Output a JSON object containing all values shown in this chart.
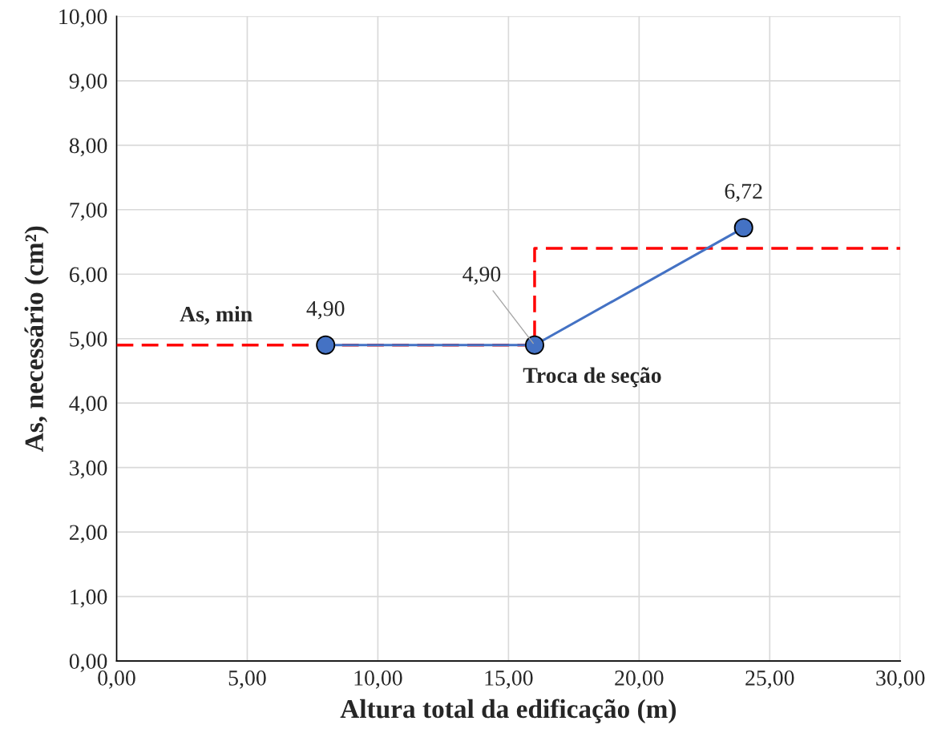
{
  "chart_data": {
    "type": "line",
    "xlabel": "Altura total da edificação (m)",
    "ylabel": "As, necessário (cm²)",
    "series": [
      {
        "type": "step",
        "color": "#ff0000",
        "line_style": "dashed",
        "marker": "none",
        "x": [
          0,
          16,
          30
        ],
        "values": [
          4.9,
          6.4,
          6.4
        ]
      },
      {
        "color": "#4472c4",
        "line_style": "solid",
        "marker": "circle",
        "x": [
          8,
          16,
          24
        ],
        "values": [
          4.9,
          4.9,
          6.72
        ],
        "value_labels": [
          "4,90",
          "4,90",
          "6,72"
        ]
      }
    ],
    "annotations": [
      "As, min",
      "Troca de seção"
    ],
    "xlim": [
      0,
      30
    ],
    "xticks": [
      {
        "value": 0,
        "label": "0,00"
      },
      {
        "value": 5,
        "label": "5,00"
      },
      {
        "value": 10,
        "label": "10,00"
      },
      {
        "value": 15,
        "label": "15,00"
      },
      {
        "value": 20,
        "label": "20,00"
      },
      {
        "value": 25,
        "label": "25,00"
      },
      {
        "value": 30,
        "label": "30,00"
      }
    ],
    "ylim": [
      0,
      10
    ],
    "yticks": [
      {
        "value": 0,
        "label": "0,00"
      },
      {
        "value": 1,
        "label": "1,00"
      },
      {
        "value": 2,
        "label": "2,00"
      },
      {
        "value": 3,
        "label": "3,00"
      },
      {
        "value": 4,
        "label": "4,00"
      },
      {
        "value": 5,
        "label": "5,00"
      },
      {
        "value": 6,
        "label": "6,00"
      },
      {
        "value": 7,
        "label": "7,00"
      },
      {
        "value": 8,
        "label": "8,00"
      },
      {
        "value": 9,
        "label": "9,00"
      },
      {
        "value": 10,
        "label": "10,00"
      }
    ],
    "grid": true
  }
}
